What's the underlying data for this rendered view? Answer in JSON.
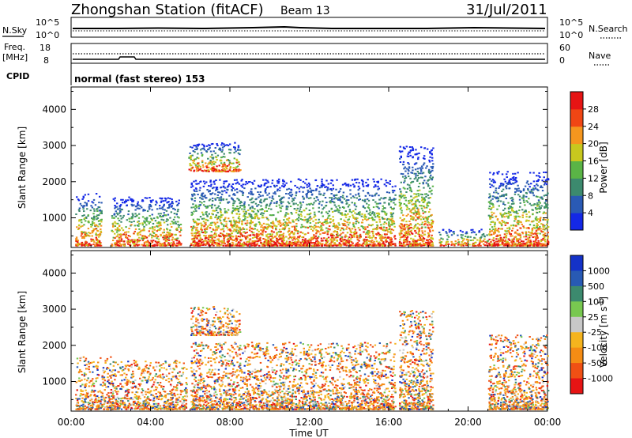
{
  "header": {
    "station": "Zhongshan Station (fitACF)",
    "beam": "Beam 13",
    "date": "31/Jul/2011"
  },
  "sky_panel": {
    "left_label": "N.Sky",
    "left_ticks": [
      "10^5",
      "10^0"
    ],
    "right_label": "N.Search",
    "right_ticks": [
      "10^5",
      "10^0"
    ]
  },
  "freq_panel": {
    "left_label_1": "Freq.",
    "left_label_2": "[MHz]",
    "left_ticks": [
      "18",
      "8"
    ],
    "right_label": "Nave",
    "right_ticks": [
      "60",
      "0"
    ]
  },
  "cpid": {
    "label": "CPID",
    "value": "normal (fast stereo) 153"
  },
  "x_axis": {
    "label": "Time UT",
    "ticks": [
      "00:00",
      "04:00",
      "08:00",
      "12:00",
      "16:00",
      "20:00",
      "00:00"
    ]
  },
  "chart_data": [
    {
      "type": "heatmap",
      "name": "power",
      "ylabel": "Slant Range [km]",
      "ylim": [
        180,
        4620
      ],
      "yticks": [
        1000,
        2000,
        3000,
        4000
      ],
      "xlim": [
        0,
        24
      ],
      "colorbar": {
        "label": "Power [dB]",
        "ticks": [
          "4",
          "8",
          "12",
          "16",
          "20",
          "24",
          "28"
        ],
        "colors": [
          "#1428e6",
          "#2a5ab4",
          "#3c8a6e",
          "#5ab446",
          "#c8c81e",
          "#f5961e",
          "#f04614",
          "#e61414"
        ]
      },
      "features": [
        {
          "t_start": 0.2,
          "t_end": 1.5,
          "range_min": 250,
          "range_max": 1700
        },
        {
          "t_start": 2.0,
          "t_end": 5.5,
          "range_min": 250,
          "range_max": 1600
        },
        {
          "t_start": 5.9,
          "t_end": 8.5,
          "range_min": 2300,
          "range_max": 3100
        },
        {
          "t_start": 6.0,
          "t_end": 16.3,
          "range_min": 250,
          "range_max": 2100
        },
        {
          "t_start": 16.5,
          "t_end": 18.2,
          "range_min": 250,
          "range_max": 3000
        },
        {
          "t_start": 18.5,
          "t_end": 21.0,
          "range_min": 250,
          "range_max": 700
        },
        {
          "t_start": 21.0,
          "t_end": 24.0,
          "range_min": 250,
          "range_max": 2300
        }
      ]
    },
    {
      "type": "heatmap",
      "name": "velocity",
      "ylabel": "Slant Range [km]",
      "ylim": [
        180,
        4620
      ],
      "yticks": [
        1000,
        2000,
        3000,
        4000
      ],
      "xlim": [
        0,
        24
      ],
      "colorbar": {
        "label": "Velocity [m s",
        "label_sup": "-1",
        "label_end": "]",
        "ticks": [
          "1000",
          "500",
          "100",
          "25",
          "-25",
          "-100",
          "-500",
          "-1000"
        ],
        "colors": [
          "#1432c8",
          "#285ab4",
          "#3c8a6e",
          "#78c850",
          "#c8c8c8",
          "#f5b41e",
          "#f58c14",
          "#f05014",
          "#e61414"
        ]
      },
      "features": [
        {
          "t_start": 0.2,
          "t_end": 2.0,
          "range_min": 250,
          "range_max": 1700
        },
        {
          "t_start": 2.0,
          "t_end": 5.8,
          "range_min": 250,
          "range_max": 1600
        },
        {
          "t_start": 6.0,
          "t_end": 8.5,
          "range_min": 2300,
          "range_max": 3100
        },
        {
          "t_start": 6.0,
          "t_end": 16.3,
          "range_min": 250,
          "range_max": 2100
        },
        {
          "t_start": 16.5,
          "t_end": 18.2,
          "range_min": 250,
          "range_max": 3000
        },
        {
          "t_start": 21.0,
          "t_end": 24.0,
          "range_min": 250,
          "range_max": 2300
        }
      ]
    }
  ]
}
